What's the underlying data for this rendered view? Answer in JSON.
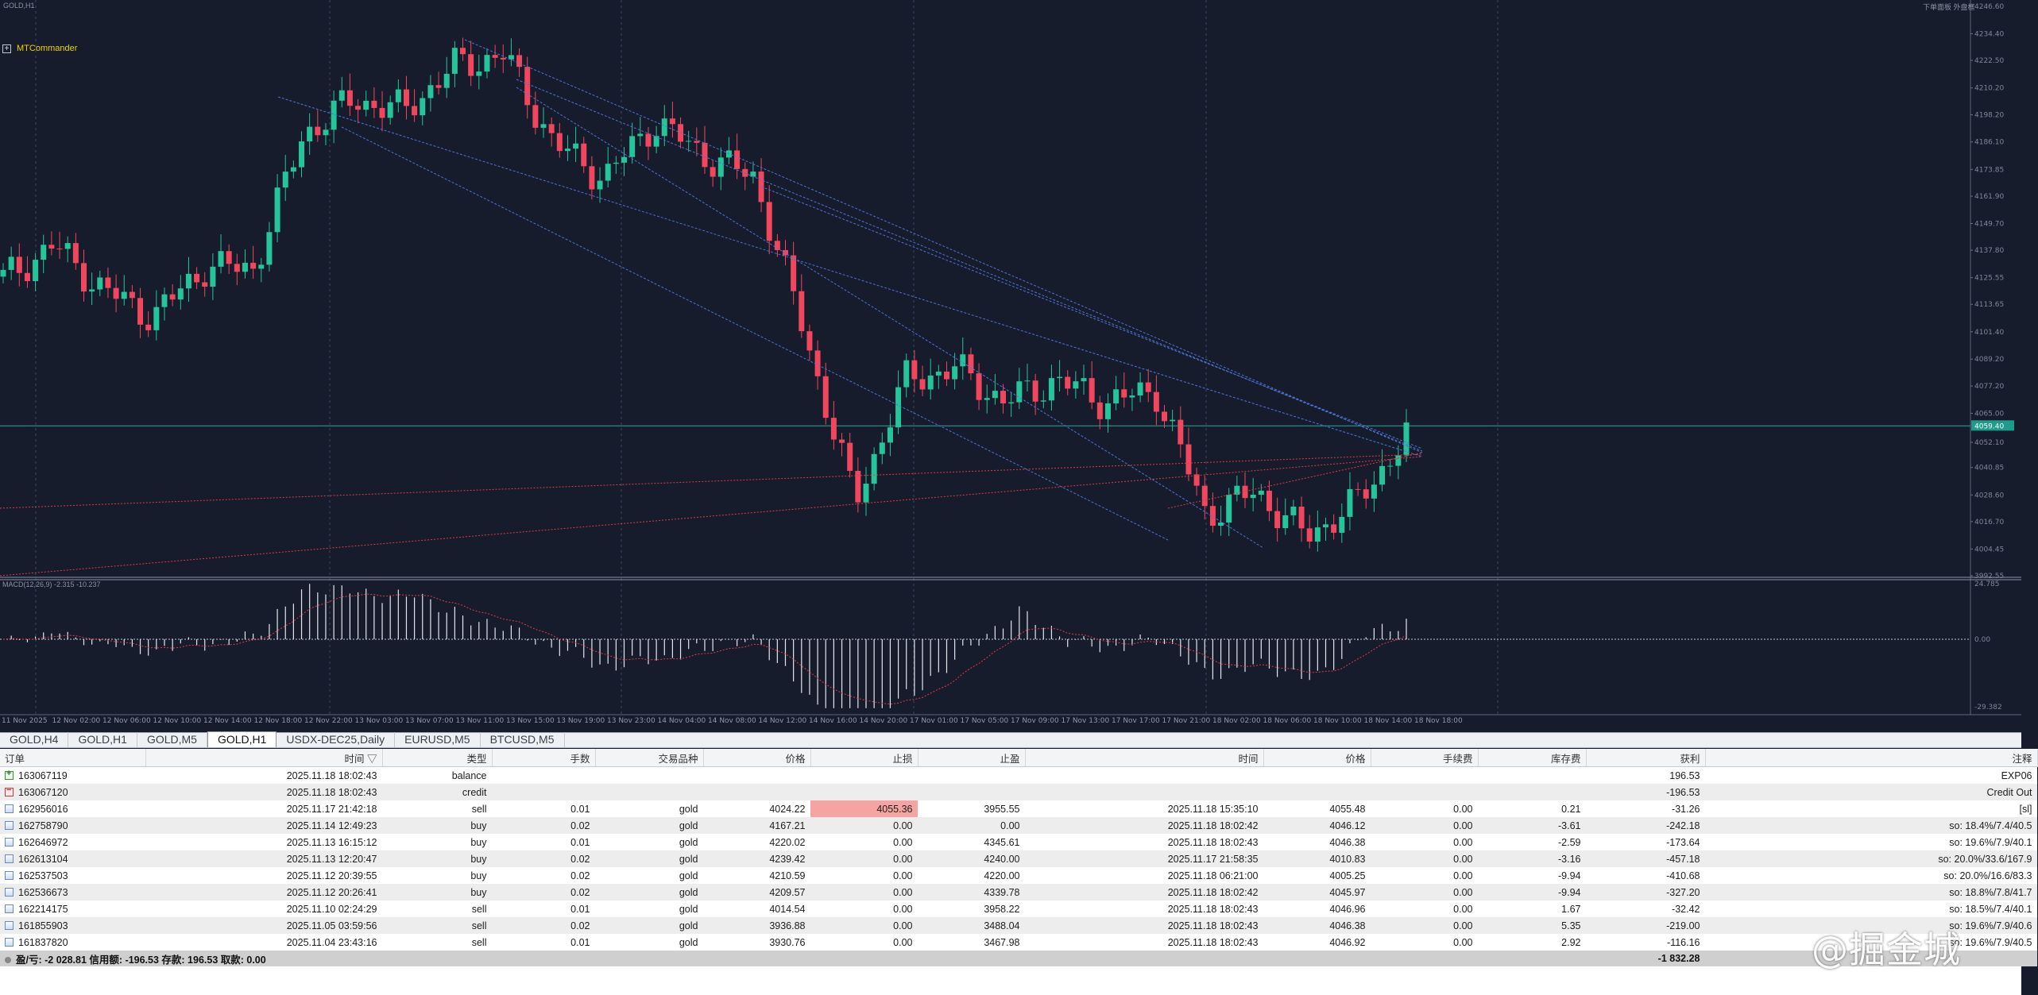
{
  "chart_window": {
    "symbol_label": "GOLD,H1",
    "top_right_text": "下单面板 外盘框",
    "mtcommander_label": "MTCommander",
    "macd_label": "MACD(12,26,9) -2.315 -10.237",
    "price_ticks": [
      "4246.60",
      "4234.40",
      "4222.50",
      "4210.20",
      "4198.20",
      "4186.10",
      "4173.85",
      "4161.90",
      "4149.70",
      "4137.80",
      "4125.55",
      "4113.65",
      "4101.40",
      "4089.20",
      "4077.20",
      "4065.00",
      "4052.10",
      "4040.85",
      "4028.60",
      "4016.70",
      "4004.45",
      "3992.55"
    ],
    "current_price_label": "4059.40",
    "macd_ticks": [
      "24.785",
      "0.00",
      "-29.382"
    ],
    "time_ticks": [
      "11 Nov 2025",
      "12 Nov 02:00",
      "12 Nov 06:00",
      "12 Nov 10:00",
      "12 Nov 14:00",
      "12 Nov 18:00",
      "12 Nov 22:00",
      "13 Nov 03:00",
      "13 Nov 07:00",
      "13 Nov 11:00",
      "13 Nov 15:00",
      "13 Nov 19:00",
      "13 Nov 23:00",
      "14 Nov 04:00",
      "14 Nov 08:00",
      "14 Nov 12:00",
      "14 Nov 16:00",
      "14 Nov 20:00",
      "17 Nov 01:00",
      "17 Nov 05:00",
      "17 Nov 09:00",
      "17 Nov 13:00",
      "17 Nov 17:00",
      "17 Nov 21:00",
      "18 Nov 02:00",
      "18 Nov 06:00",
      "18 Nov 10:00",
      "18 Nov 14:00",
      "18 Nov 18:00"
    ],
    "colors": {
      "background": "#161c2b",
      "bull": "#26c49a",
      "bear": "#f0475e",
      "grid": "#3b4a63"
    }
  },
  "chart_data": {
    "type": "candlestick",
    "x": [
      "11 Nov 2025",
      "12 Nov 02:00",
      "12 Nov 06:00",
      "12 Nov 10:00",
      "12 Nov 14:00",
      "12 Nov 18:00",
      "12 Nov 22:00",
      "13 Nov 03:00",
      "13 Nov 07:00",
      "13 Nov 11:00",
      "13 Nov 15:00",
      "13 Nov 19:00",
      "13 Nov 23:00",
      "14 Nov 04:00",
      "14 Nov 08:00",
      "14 Nov 12:00",
      "14 Nov 16:00",
      "14 Nov 20:00",
      "17 Nov 01:00",
      "17 Nov 05:00",
      "17 Nov 09:00",
      "17 Nov 13:00",
      "17 Nov 17:00",
      "17 Nov 21:00",
      "18 Nov 02:00",
      "18 Nov 06:00",
      "18 Nov 10:00",
      "18 Nov 14:00",
      "18 Nov 18:00"
    ],
    "close": [
      4125,
      4140,
      4120,
      4108,
      4130,
      4130,
      4190,
      4205,
      4200,
      4220,
      4225,
      4185,
      4170,
      4195,
      4180,
      4170,
      4100,
      4025,
      4080,
      4085,
      4070,
      4080,
      4070,
      4075,
      4020,
      4030,
      4010,
      4025,
      4055
    ],
    "ylim": [
      3992.55,
      4246.6
    ],
    "last_price": 4059.4,
    "macd_ylim": [
      -29.382,
      24.785
    ]
  },
  "tabs": [
    "GOLD,H4",
    "GOLD,H1",
    "GOLD,M5",
    "GOLD,H1",
    "USDX-DEC25,Daily",
    "EURUSD,M5",
    "BTCUSD,M5"
  ],
  "active_tab": 3,
  "columns": [
    "订单",
    "时间",
    "类型",
    "手数",
    "交易品种",
    "价格",
    "止损",
    "止盈",
    "时间",
    "价格",
    "手续费",
    "库存费",
    "获利",
    "注释"
  ],
  "orders": [
    {
      "order": "163067119",
      "time": "2025.11.18 18:02:43",
      "type": "balance",
      "lots": "",
      "symbol": "",
      "price": "",
      "sl": "",
      "tp": "",
      "close_time": "",
      "close_price": "",
      "commission": "",
      "swap": "",
      "profit": "196.53",
      "comment": "EXP06",
      "icon": "bal"
    },
    {
      "order": "163067120",
      "time": "2025.11.18 18:02:43",
      "type": "credit",
      "lots": "",
      "symbol": "",
      "price": "",
      "sl": "",
      "tp": "",
      "close_time": "",
      "close_price": "",
      "commission": "",
      "swap": "",
      "profit": "-196.53",
      "comment": "Credit Out",
      "icon": "cred"
    },
    {
      "order": "162956016",
      "time": "2025.11.17 21:42:18",
      "type": "sell",
      "lots": "0.01",
      "symbol": "gold",
      "price": "4024.22",
      "sl": "4055.36",
      "tp": "3955.55",
      "close_time": "2025.11.18 15:35:10",
      "close_price": "4055.48",
      "commission": "0.00",
      "swap": "0.21",
      "profit": "-31.26",
      "comment": "[sl]",
      "icon": "ord",
      "sl_hit": true
    },
    {
      "order": "162758790",
      "time": "2025.11.14 12:49:23",
      "type": "buy",
      "lots": "0.02",
      "symbol": "gold",
      "price": "4167.21",
      "sl": "0.00",
      "tp": "0.00",
      "close_time": "2025.11.18 18:02:42",
      "close_price": "4046.12",
      "commission": "0.00",
      "swap": "-3.61",
      "profit": "-242.18",
      "comment": "so: 18.4%/7.4/40.5",
      "icon": "ord"
    },
    {
      "order": "162646972",
      "time": "2025.11.13 16:15:12",
      "type": "buy",
      "lots": "0.01",
      "symbol": "gold",
      "price": "4220.02",
      "sl": "0.00",
      "tp": "4345.61",
      "close_time": "2025.11.18 18:02:43",
      "close_price": "4046.38",
      "commission": "0.00",
      "swap": "-2.59",
      "profit": "-173.64",
      "comment": "so: 19.6%/7.9/40.1",
      "icon": "ord"
    },
    {
      "order": "162613104",
      "time": "2025.11.13 12:20:47",
      "type": "buy",
      "lots": "0.02",
      "symbol": "gold",
      "price": "4239.42",
      "sl": "0.00",
      "tp": "4240.00",
      "close_time": "2025.11.17 21:58:35",
      "close_price": "4010.83",
      "commission": "0.00",
      "swap": "-3.16",
      "profit": "-457.18",
      "comment": "so: 20.0%/33.6/167.9",
      "icon": "ord"
    },
    {
      "order": "162537503",
      "time": "2025.11.12 20:39:55",
      "type": "buy",
      "lots": "0.02",
      "symbol": "gold",
      "price": "4210.59",
      "sl": "0.00",
      "tp": "4220.00",
      "close_time": "2025.11.18 06:21:00",
      "close_price": "4005.25",
      "commission": "0.00",
      "swap": "-9.94",
      "profit": "-410.68",
      "comment": "so: 20.0%/16.6/83.3",
      "icon": "ord"
    },
    {
      "order": "162536673",
      "time": "2025.11.12 20:26:41",
      "type": "buy",
      "lots": "0.02",
      "symbol": "gold",
      "price": "4209.57",
      "sl": "0.00",
      "tp": "4339.78",
      "close_time": "2025.11.18 18:02:42",
      "close_price": "4045.97",
      "commission": "0.00",
      "swap": "-9.94",
      "profit": "-327.20",
      "comment": "so: 18.8%/7.8/41.7",
      "icon": "ord"
    },
    {
      "order": "162214175",
      "time": "2025.11.10 02:24:29",
      "type": "sell",
      "lots": "0.01",
      "symbol": "gold",
      "price": "4014.54",
      "sl": "0.00",
      "tp": "3958.22",
      "close_time": "2025.11.18 18:02:43",
      "close_price": "4046.96",
      "commission": "0.00",
      "swap": "1.67",
      "profit": "-32.42",
      "comment": "so: 18.5%/7.4/40.1",
      "icon": "ord"
    },
    {
      "order": "161855903",
      "time": "2025.11.05 03:59:56",
      "type": "sell",
      "lots": "0.02",
      "symbol": "gold",
      "price": "3936.88",
      "sl": "0.00",
      "tp": "3488.04",
      "close_time": "2025.11.18 18:02:43",
      "close_price": "4046.38",
      "commission": "0.00",
      "swap": "5.35",
      "profit": "-219.00",
      "comment": "so: 19.6%/7.9/40.6",
      "icon": "ord"
    },
    {
      "order": "161837820",
      "time": "2025.11.04 23:43:16",
      "type": "sell",
      "lots": "0.01",
      "symbol": "gold",
      "price": "3930.76",
      "sl": "0.00",
      "tp": "3467.98",
      "close_time": "2025.11.18 18:02:43",
      "close_price": "4046.92",
      "commission": "0.00",
      "swap": "2.92",
      "profit": "-116.16",
      "comment": "so: 19.6%/7.9/40.5",
      "icon": "ord"
    }
  ],
  "summary": {
    "text": "盈/亏: -2 028.81  信用额: -196.53  存款: 196.53  取款: 0.00",
    "total": "-1 832.28"
  },
  "watermark": "@掘金城"
}
